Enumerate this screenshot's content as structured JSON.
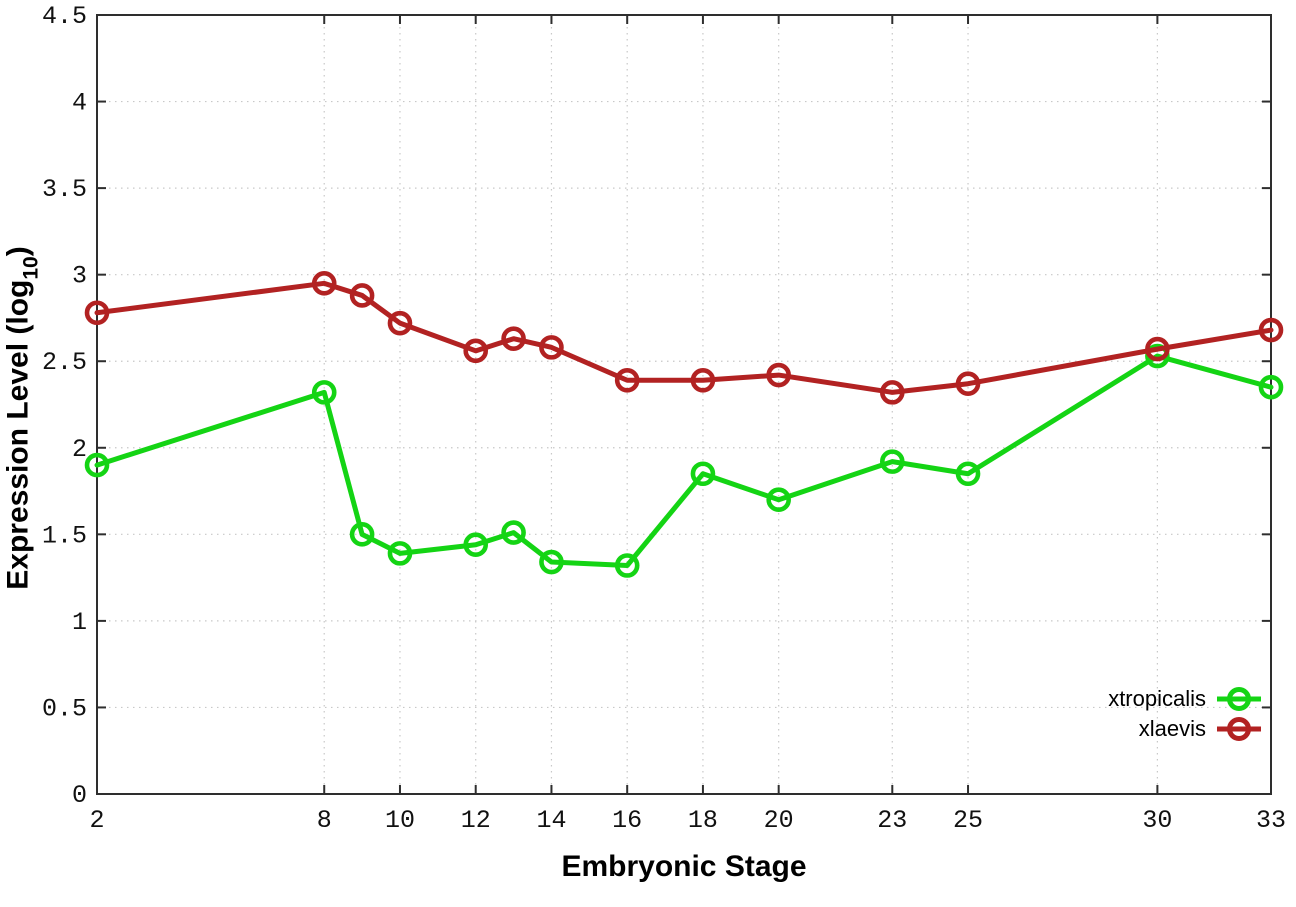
{
  "chart_data": {
    "type": "line",
    "title": "",
    "xlabel": "Embryonic Stage",
    "ylabel": {
      "prefix": "Expression Level (log",
      "sub": "10",
      "suffix": ")"
    },
    "x": [
      2,
      8,
      9,
      10,
      12,
      13,
      14,
      16,
      18,
      20,
      23,
      25,
      30,
      33
    ],
    "series": [
      {
        "name": "xtropicalis",
        "color": "#14d414",
        "values": [
          1.9,
          2.32,
          1.5,
          1.39,
          1.44,
          1.51,
          1.34,
          1.32,
          1.85,
          1.7,
          1.92,
          1.85,
          2.53,
          2.35
        ]
      },
      {
        "name": "xlaevis",
        "color": "#b22222",
        "values": [
          2.78,
          2.95,
          2.88,
          2.72,
          2.56,
          2.63,
          2.58,
          2.39,
          2.39,
          2.42,
          2.32,
          2.37,
          2.57,
          2.68
        ]
      }
    ],
    "xticks": [
      2,
      8,
      10,
      12,
      14,
      16,
      18,
      20,
      23,
      25,
      30,
      33
    ],
    "yticks": [
      0,
      0.5,
      1,
      1.5,
      2,
      2.5,
      3,
      3.5,
      4,
      4.5
    ],
    "xlim": [
      2,
      33
    ],
    "ylim": [
      0,
      4.5
    ],
    "grid": true,
    "legend_position": "inside-bottom-right",
    "colors": {
      "grid": "#c8c8c8",
      "axis": "#2e2e2e",
      "tick_text": "#111111"
    }
  }
}
